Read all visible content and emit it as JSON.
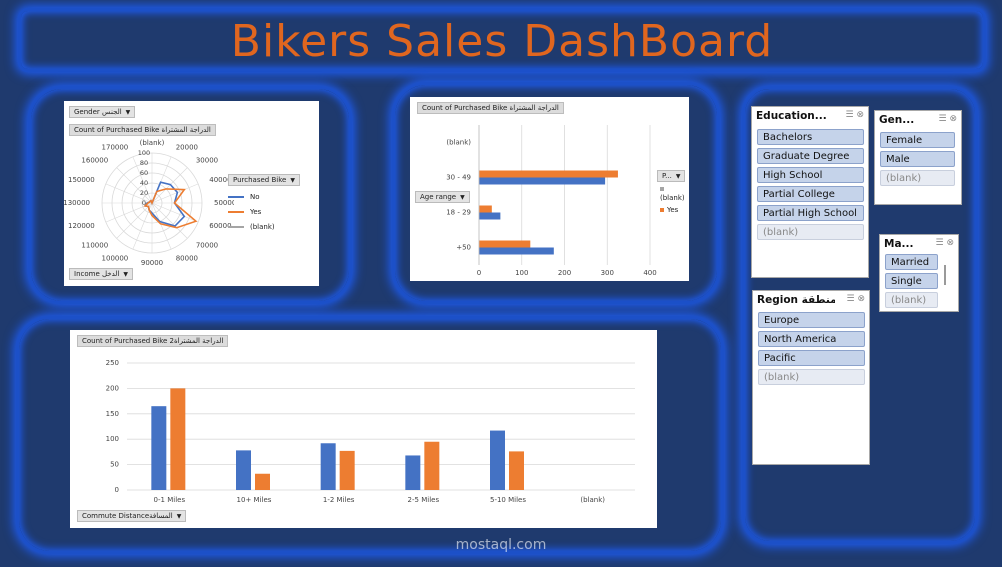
{
  "title": "Bikers Sales DashBoard",
  "colors": {
    "no": "#4472c4",
    "yes": "#ed7d31",
    "blank": "#a5a5a5",
    "accent": "#e0661f"
  },
  "radar": {
    "filter_label": "Gender الجنس",
    "value_tag": "Count of Purchased Bike الدراجة المشتراة",
    "axis_tag": "Income الدخل",
    "legend_title": "Purchased Bike",
    "legend": [
      "No",
      "Yes",
      "(blank)"
    ],
    "rings": [
      "0",
      "20",
      "40",
      "60",
      "80",
      "100"
    ],
    "categories": [
      "(blank)",
      "20000",
      "30000",
      "40000",
      "50000",
      "60000",
      "70000",
      "80000",
      "90000",
      "100000",
      "110000",
      "120000",
      "130000",
      "150000",
      "160000",
      "170000"
    ]
  },
  "age": {
    "value_tag": "Count of Purchased Bike الدراجة المشتراة",
    "axis_tag": "Age range",
    "legend_title": "P...",
    "legend": [
      "(blank)",
      "Yes"
    ],
    "ticks": [
      "0",
      "100",
      "200",
      "300",
      "400"
    ]
  },
  "commute": {
    "value_tag": "Count of Purchased Bike الدراجة المشتراة2",
    "axis_tag": "Commute Distanceالمسافة",
    "ticks": [
      "0",
      "50",
      "100",
      "150",
      "200",
      "250"
    ]
  },
  "chart_data": [
    {
      "type": "radar",
      "categories": [
        "(blank)",
        "20000",
        "30000",
        "40000",
        "50000",
        "60000",
        "70000",
        "80000",
        "90000",
        "100000",
        "110000",
        "120000",
        "130000",
        "150000",
        "160000",
        "170000"
      ],
      "series": [
        {
          "name": "No",
          "values": [
            0,
            45,
            52,
            55,
            45,
            70,
            65,
            40,
            20,
            15,
            10,
            15,
            10,
            5,
            5,
            5
          ]
        },
        {
          "name": "Yes",
          "values": [
            0,
            25,
            40,
            70,
            45,
            95,
            70,
            45,
            25,
            15,
            10,
            15,
            8,
            5,
            5,
            5
          ]
        },
        {
          "name": "(blank)",
          "values": [
            0,
            0,
            0,
            0,
            0,
            0,
            0,
            0,
            0,
            0,
            0,
            0,
            0,
            0,
            0,
            0
          ]
        }
      ],
      "ylim": [
        0,
        100
      ],
      "legend_title": "Purchased Bike",
      "xlabel": "Income الدخل"
    },
    {
      "type": "bar",
      "orientation": "horizontal",
      "categories": [
        "(blank)",
        "30 - 49",
        "18 - 29",
        "+50"
      ],
      "series": [
        {
          "name": "Yes",
          "values": [
            0,
            325,
            30,
            120
          ]
        },
        {
          "name": "(blank)",
          "values": [
            0,
            295,
            50,
            175
          ]
        }
      ],
      "xlim": [
        0,
        400
      ],
      "legend_title": "P...",
      "ylabel": "Age range"
    },
    {
      "type": "bar",
      "categories": [
        "0-1 Miles",
        "10+ Miles",
        "1-2 Miles",
        "2-5 Miles",
        "5-10 Miles",
        "(blank)"
      ],
      "series": [
        {
          "name": "No",
          "values": [
            165,
            78,
            92,
            68,
            117,
            0
          ]
        },
        {
          "name": "Yes",
          "values": [
            200,
            32,
            77,
            95,
            76,
            0
          ]
        }
      ],
      "ylim": [
        0,
        250
      ],
      "xlabel": "Commute Distanceالمسافة"
    }
  ],
  "slicers": {
    "education": {
      "title": "Education...",
      "items": [
        "Bachelors",
        "Graduate Degree",
        "High School",
        "Partial College",
        "Partial High School",
        "(blank)"
      ]
    },
    "gender": {
      "title": "Gen...",
      "items": [
        "Female",
        "Male",
        "(blank)"
      ]
    },
    "marital": {
      "title": "Ma...",
      "items": [
        "Married",
        "Single",
        "(blank)"
      ]
    },
    "region": {
      "title": "Region المنطقة",
      "items": [
        "Europe",
        "North America",
        "Pacific",
        "(blank)"
      ]
    }
  },
  "watermark": {
    "arabic": "مستقل",
    "latin": "mostaql.com"
  }
}
